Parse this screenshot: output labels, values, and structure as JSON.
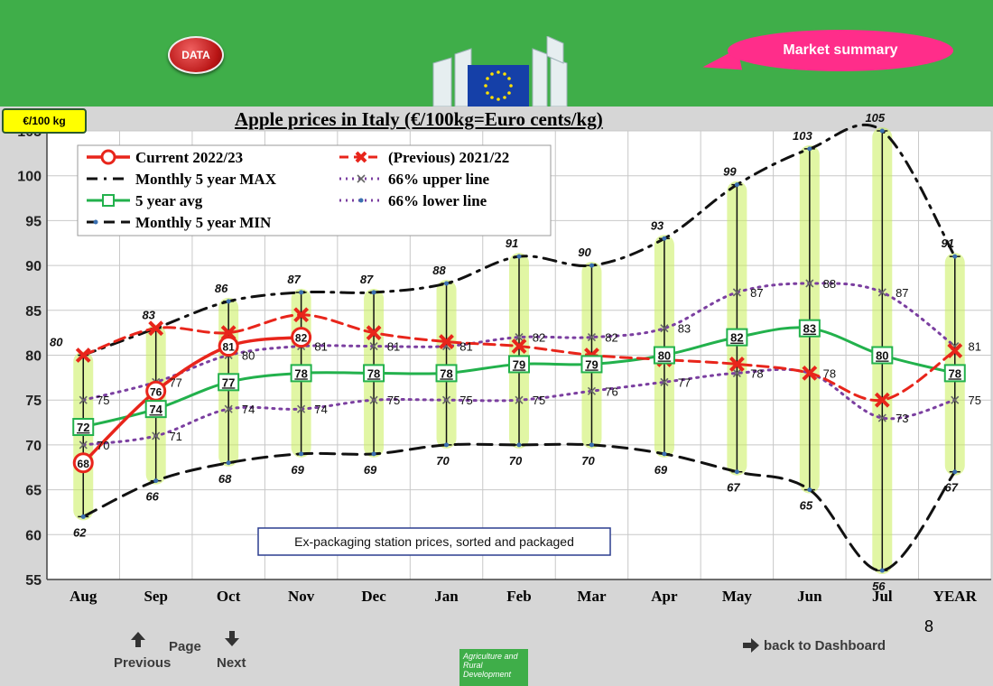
{
  "header": {
    "data_button": "DATA",
    "market_summary": "Market summary"
  },
  "unit_badge": "€/100 kg",
  "chart_data": {
    "type": "line",
    "title": "Apple prices in Italy (€/100kg=Euro cents/kg)",
    "categories": [
      "Aug",
      "Sep",
      "Oct",
      "Nov",
      "Dec",
      "Jan",
      "Feb",
      "Mar",
      "Apr",
      "May",
      "Jun",
      "Jul",
      "YEAR"
    ],
    "ylim": [
      55,
      105
    ],
    "yticks": [
      55,
      60,
      65,
      70,
      75,
      80,
      85,
      90,
      95,
      100,
      105
    ],
    "grid": true,
    "legend_position": "top-left",
    "note": "Ex-packaging station prices, sorted and packaged",
    "series": [
      {
        "name": "Current 2022/23",
        "color": "#e8251b",
        "values": [
          68,
          76,
          81,
          82,
          null,
          null,
          null,
          null,
          null,
          null,
          null,
          null,
          null
        ]
      },
      {
        "name": "(Previous) 2021/22",
        "color": "#e8251b",
        "values": [
          80,
          83,
          82.5,
          84.5,
          82.5,
          81.5,
          81,
          80,
          79.5,
          79,
          78,
          75,
          80.5
        ]
      },
      {
        "name": "Monthly 5 year MAX",
        "color": "#000000",
        "values": [
          80,
          83,
          86,
          87,
          87,
          88,
          91,
          90,
          93,
          99,
          103,
          105,
          91
        ]
      },
      {
        "name": "66% upper line",
        "color": "#7b3fa0",
        "values": [
          75,
          77,
          80,
          81,
          81,
          81,
          82,
          82,
          83,
          87,
          88,
          87,
          81
        ]
      },
      {
        "name": "5 year avg",
        "color": "#22b14c",
        "values": [
          72,
          74,
          77,
          78,
          78,
          78,
          79,
          79,
          80,
          82,
          83,
          80,
          78
        ]
      },
      {
        "name": "66% lower line",
        "color": "#7b3fa0",
        "values": [
          70,
          71,
          74,
          74,
          75,
          75,
          75,
          76,
          77,
          78,
          78,
          73,
          75
        ]
      },
      {
        "name": "Monthly 5 year MIN",
        "color": "#000000",
        "values": [
          62,
          66,
          68,
          69,
          69,
          70,
          70,
          70,
          69,
          67,
          65,
          56,
          67
        ]
      }
    ],
    "labels": {
      "current": [
        68,
        76,
        81,
        82
      ],
      "max": [
        80,
        83,
        86,
        87,
        87,
        88,
        91,
        90,
        93,
        99,
        103,
        105,
        91
      ],
      "upper": [
        75,
        77,
        80,
        81,
        81,
        81,
        82,
        82,
        83,
        87,
        88,
        87,
        81
      ],
      "avg": [
        72,
        74,
        77,
        78,
        78,
        78,
        79,
        79,
        80,
        82,
        83,
        80,
        78
      ],
      "lower": [
        70,
        71,
        74,
        74,
        75,
        75,
        75,
        76,
        77,
        78,
        78,
        73,
        75
      ],
      "min": [
        62,
        66,
        68,
        69,
        69,
        70,
        70,
        70,
        69,
        67,
        65,
        56,
        67
      ]
    }
  },
  "footer": {
    "page_number": "8",
    "page_label": "Page",
    "previous": "Previous",
    "next": "Next",
    "back": "back to Dashboard",
    "agri": "Agriculture and Rural Development"
  }
}
